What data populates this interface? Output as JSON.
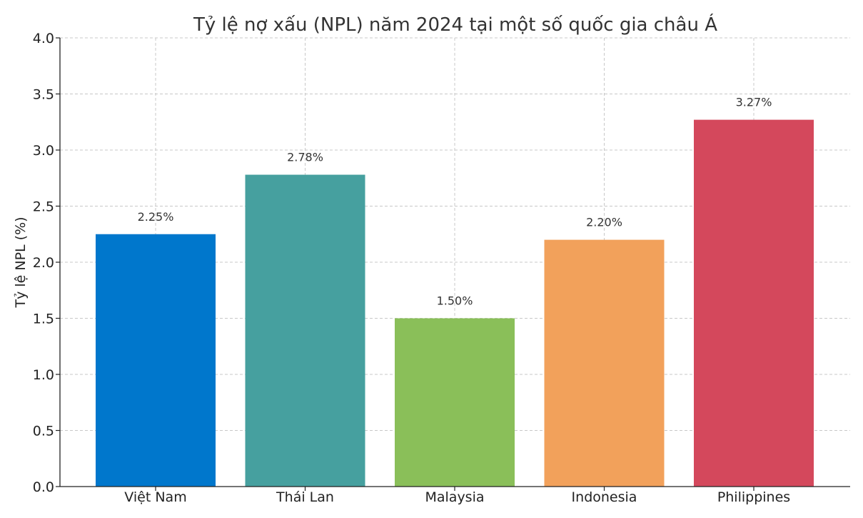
{
  "chart_data": {
    "type": "bar",
    "title": "Tỷ lệ nợ xấu (NPL) năm 2024 tại một số quốc gia châu Á",
    "xlabel": "",
    "ylabel": "Tỷ lệ NPL (%)",
    "categories": [
      "Việt Nam",
      "Thái Lan",
      "Malaysia",
      "Indonesia",
      "Philippines"
    ],
    "values": [
      2.25,
      2.78,
      1.5,
      2.2,
      3.27
    ],
    "data_labels": [
      "2.25%",
      "2.78%",
      "1.50%",
      "2.20%",
      "3.27%"
    ],
    "colors": [
      "#0077CC",
      "#46A09F",
      "#8ABF59",
      "#F2A15B",
      "#D4485C"
    ],
    "ylim": [
      0,
      4.0
    ],
    "yticks": [
      0.0,
      0.5,
      1.0,
      1.5,
      2.0,
      2.5,
      3.0,
      3.5,
      4.0
    ],
    "ytick_labels": [
      "0.0",
      "0.5",
      "1.0",
      "1.5",
      "2.0",
      "2.5",
      "3.0",
      "3.5",
      "4.0"
    ],
    "grid": true,
    "legend": "none"
  }
}
